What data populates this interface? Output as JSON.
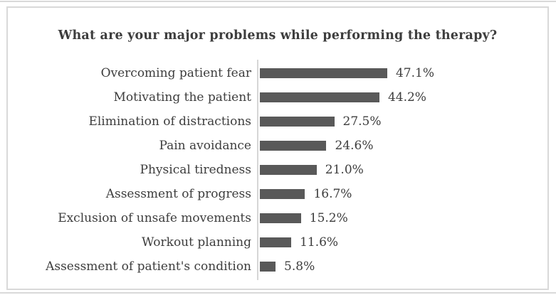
{
  "chart_data": {
    "type": "bar",
    "orientation": "horizontal",
    "title": "What are your major problems while performing the therapy?",
    "categories": [
      "Overcoming patient fear",
      "Motivating the patient",
      "Elimination of distractions",
      "Pain avoidance",
      "Physical tiredness",
      "Assessment of progress",
      "Exclusion of unsafe movements",
      "Workout planning",
      "Assessment of patient's condition"
    ],
    "values": [
      47.1,
      44.2,
      27.5,
      24.6,
      21.0,
      16.7,
      15.2,
      11.6,
      5.8
    ],
    "value_labels": [
      "47.1%",
      "44.2%",
      "27.5%",
      "24.6%",
      "21.0%",
      "16.7%",
      "15.2%",
      "11.6%",
      "5.8%"
    ],
    "xlim": [
      0,
      50
    ],
    "xlabel": "",
    "ylabel": "",
    "grid": false,
    "legend": false,
    "bar_color": "#595959",
    "axis_color": "#d6d6d6",
    "text_color": "#3d3d3d",
    "frame_color": "#d9d9d9"
  }
}
